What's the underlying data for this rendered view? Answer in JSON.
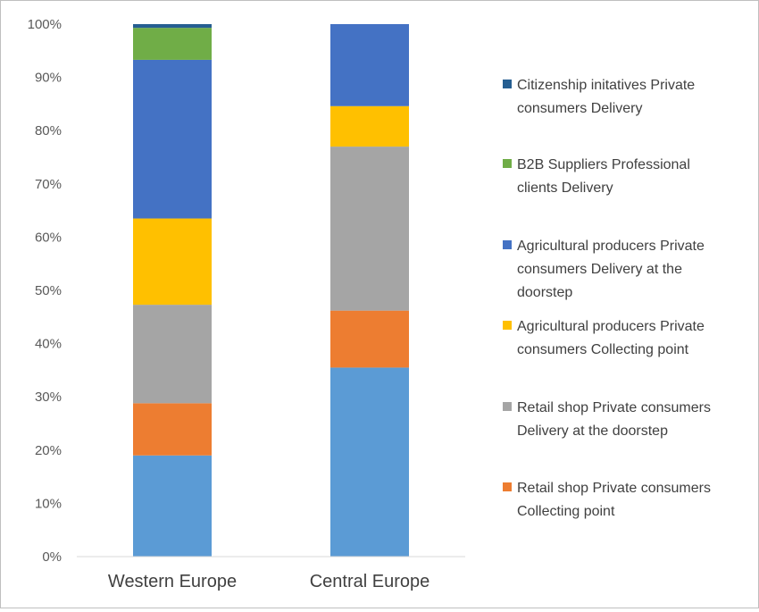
{
  "chart_data": {
    "type": "bar",
    "stacked": true,
    "categories": [
      "Western Europe",
      "Central Europe"
    ],
    "y_ticks": [
      "0%",
      "10%",
      "20%",
      "30%",
      "40%",
      "50%",
      "60%",
      "70%",
      "80%",
      "90%",
      "100%"
    ],
    "ylim": [
      0,
      100
    ],
    "grid": false,
    "legend_position": "right",
    "series": [
      {
        "name": "",
        "color": "#5B9BD5",
        "values": [
          19,
          35.5
        ]
      },
      {
        "name": "Retail shop Private consumers Collecting point",
        "color": "#ED7D31",
        "values": [
          9.8,
          10.7
        ]
      },
      {
        "name": "Retail shop Private consumers Delivery at the doorstep",
        "color": "#A5A5A5",
        "values": [
          18.5,
          30.8
        ]
      },
      {
        "name": "Agricultural producers Private consumers Collecting point",
        "color": "#FFC000",
        "values": [
          16.2,
          7.6
        ]
      },
      {
        "name": "Agricultural producers Private consumers Delivery at the doorstep",
        "color": "#4472C4",
        "values": [
          29.8,
          15.4
        ]
      },
      {
        "name": "B2B Suppliers Professional clients Delivery",
        "color": "#70AD47",
        "values": [
          6,
          0
        ]
      },
      {
        "name": "Citizenship initatives Private consumers Delivery",
        "color": "#255E91",
        "values": [
          0.7,
          0
        ]
      }
    ],
    "legend": [
      {
        "lines": [
          "Citizenship initatives Private",
          "consumers Delivery"
        ],
        "color": "#255E91"
      },
      {
        "lines": [
          "B2B Suppliers Professional",
          "clients Delivery"
        ],
        "color": "#70AD47"
      },
      {
        "lines": [
          "Agricultural producers Private",
          "consumers Delivery at the",
          "doorstep"
        ],
        "color": "#4472C4"
      },
      {
        "lines": [
          "Agricultural producers Private",
          "consumers Collecting point"
        ],
        "color": "#FFC000"
      },
      {
        "lines": [
          "Retail shop Private consumers",
          "Delivery at the doorstep"
        ],
        "color": "#A5A5A5"
      },
      {
        "lines": [
          "Retail shop Private consumers",
          "Collecting point"
        ],
        "color": "#ED7D31"
      }
    ]
  }
}
